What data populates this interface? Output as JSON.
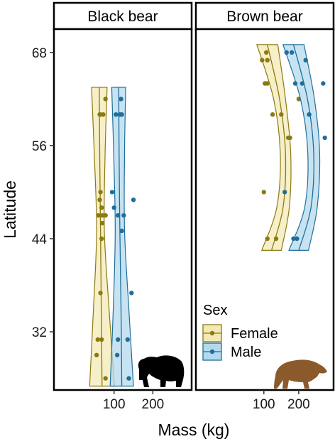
{
  "chart_data": {
    "type": "scatter",
    "xlabel": "Mass (kg)",
    "ylabel": "Latitude",
    "ylim": [
      24.5,
      71
    ],
    "y_ticks": [
      32,
      44,
      56,
      68
    ],
    "x_ticks": [
      100,
      200
    ],
    "grid": false,
    "legend": {
      "title": "Sex",
      "placement": "bottom-right",
      "entries": [
        {
          "label": "Female",
          "color": "#8b7a12",
          "fill": "#f3e9b5"
        },
        {
          "label": "Male",
          "color": "#1f6f9a",
          "fill": "#b4d9ee"
        }
      ]
    },
    "panels": [
      {
        "strip": "Black bear",
        "xlim": [
          -55,
          300
        ],
        "silhouette": "black-bear-silhouette",
        "silhouette_color": "#000000",
        "series": [
          {
            "name": "Female",
            "points": [
              [
                78,
                62
              ],
              [
                63,
                60
              ],
              [
                65,
                60
              ],
              [
                72,
                60
              ],
              [
                65,
                50
              ],
              [
                63,
                49
              ],
              [
                60,
                47
              ],
              [
                70,
                47
              ],
              [
                78,
                47
              ],
              [
                68,
                48
              ],
              [
                70,
                46
              ],
              [
                68,
                44
              ],
              [
                65,
                37
              ],
              [
                58,
                31
              ],
              [
                68,
                31
              ],
              [
                55,
                29
              ],
              [
                78,
                26
              ]
            ],
            "fit": [
              [
                62,
                63.5
              ],
              [
                63,
                55
              ],
              [
                65,
                45
              ],
              [
                67,
                35
              ],
              [
                69,
                25
              ]
            ],
            "band_half": [
              [
                20,
                63.5
              ],
              [
                14,
                55
              ],
              [
                10,
                45
              ],
              [
                20,
                35
              ],
              [
                32,
                25
              ]
            ]
          },
          {
            "name": "Male",
            "points": [
              [
                118,
                62
              ],
              [
                115,
                60
              ],
              [
                120,
                60
              ],
              [
                105,
                60
              ],
              [
                95,
                50
              ],
              [
                100,
                48
              ],
              [
                150,
                49
              ],
              [
                125,
                47
              ],
              [
                110,
                47
              ],
              [
                120,
                45
              ],
              [
                145,
                37
              ],
              [
                110,
                31
              ],
              [
                135,
                31
              ],
              [
                108,
                29
              ],
              [
                138,
                26
              ]
            ],
            "fit": [
              [
                112,
                63.5
              ],
              [
                113,
                55
              ],
              [
                115,
                45
              ],
              [
                118,
                35
              ],
              [
                120,
                25
              ]
            ],
            "band_half": [
              [
                18,
                63.5
              ],
              [
                14,
                55
              ],
              [
                12,
                45
              ],
              [
                20,
                35
              ],
              [
                30,
                25
              ]
            ]
          }
        ]
      },
      {
        "strip": "Brown bear",
        "xlim": [
          -95,
          300
        ],
        "silhouette": "brown-bear-silhouette",
        "silhouette_color": "#8b5a2b",
        "series": [
          {
            "name": "Female",
            "points": [
              [
                107,
                68
              ],
              [
                95,
                67
              ],
              [
                110,
                67
              ],
              [
                103,
                64
              ],
              [
                110,
                64
              ],
              [
                200,
                62
              ],
              [
                125,
                60
              ],
              [
                150,
                60
              ],
              [
                170,
                57
              ],
              [
                175,
                57
              ],
              [
                100,
                50
              ],
              [
                110,
                44
              ],
              [
                135,
                44
              ]
            ],
            "fit": [
              [
                110,
                69
              ],
              [
                145,
                62
              ],
              [
                162,
                55
              ],
              [
                155,
                48
              ],
              [
                122,
                42.5
              ]
            ],
            "band_half": [
              [
                30,
                69
              ],
              [
                17,
                62
              ],
              [
                15,
                55
              ],
              [
                18,
                48
              ],
              [
                28,
                42.5
              ]
            ]
          },
          {
            "name": "Male",
            "points": [
              [
                180,
                68
              ],
              [
                165,
                68
              ],
              [
                220,
                67
              ],
              [
                190,
                64
              ],
              [
                210,
                64
              ],
              [
                230,
                60
              ],
              [
                275,
                57
              ],
              [
                270,
                64
              ],
              [
                160,
                50
              ],
              [
                185,
                44
              ],
              [
                195,
                44
              ]
            ],
            "fit": [
              [
                185,
                69
              ],
              [
                225,
                62
              ],
              [
                243,
                55
              ],
              [
                235,
                48
              ],
              [
                200,
                42.5
              ]
            ],
            "band_half": [
              [
                30,
                69
              ],
              [
                20,
                62
              ],
              [
                17,
                55
              ],
              [
                18,
                48
              ],
              [
                28,
                42.5
              ]
            ]
          }
        ]
      }
    ]
  }
}
